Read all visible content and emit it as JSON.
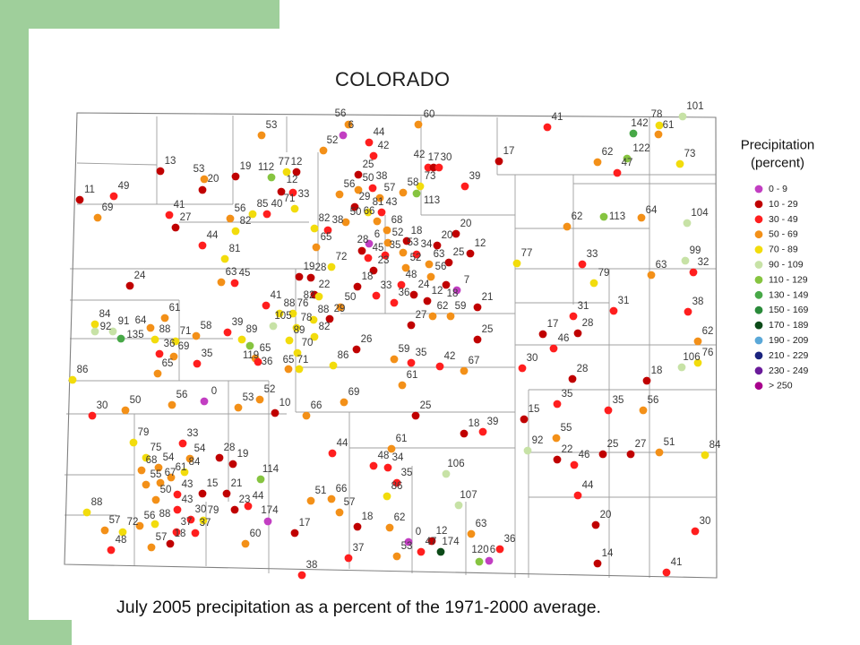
{
  "title": "COLORADO",
  "caption": "July 2005 precipitation as a percent of the 1971-2000 average.",
  "legend": {
    "title_line1": "Precipitation",
    "title_line2": "(percent)",
    "items": [
      {
        "label": "0 - 9",
        "color": "#c23ec2"
      },
      {
        "label": "10 - 29",
        "color": "#c00000"
      },
      {
        "label": "30 - 49",
        "color": "#ff1e1e"
      },
      {
        "label": "50 - 69",
        "color": "#f39018"
      },
      {
        "label": "70 - 89",
        "color": "#f2dc0c"
      },
      {
        "label": "90 - 109",
        "color": "#c7e2a6"
      },
      {
        "label": "110 - 129",
        "color": "#86c440"
      },
      {
        "label": "130 - 149",
        "color": "#47a847"
      },
      {
        "label": "150 - 169",
        "color": "#2a8a3a"
      },
      {
        "label": "170 - 189",
        "color": "#0c4a18"
      },
      {
        "label": "190 - 209",
        "color": "#5aa8d8"
      },
      {
        "label": "210 - 229",
        "color": "#1a237e"
      },
      {
        "label": "230 - 249",
        "color": "#6a1b9a"
      },
      {
        "label": "> 250",
        "color": "#a8008c"
      }
    ]
  },
  "stations": [
    {
      "value": "101",
      "bin": 5
    },
    {
      "value": "56",
      "bin": 3
    },
    {
      "value": "60",
      "bin": 3
    },
    {
      "value": "41",
      "bin": 2
    },
    {
      "value": "78",
      "bin": 4
    },
    {
      "value": "142",
      "bin": 7
    },
    {
      "value": "53",
      "bin": 3
    },
    {
      "value": "6",
      "bin": 0
    },
    {
      "value": "61",
      "bin": 3
    },
    {
      "value": "44",
      "bin": 2
    },
    {
      "value": "52",
      "bin": 3
    },
    {
      "value": "42",
      "bin": 2
    },
    {
      "value": "17",
      "bin": 1
    },
    {
      "value": "122",
      "bin": 6
    },
    {
      "value": "62",
      "bin": 3
    },
    {
      "value": "73",
      "bin": 4
    },
    {
      "value": "47",
      "bin": 2
    },
    {
      "value": "13",
      "bin": 1
    },
    {
      "value": "42",
      "bin": 2
    },
    {
      "value": "17",
      "bin": 1
    },
    {
      "value": "30",
      "bin": 2
    },
    {
      "value": "25",
      "bin": 1
    },
    {
      "value": "19",
      "bin": 1
    },
    {
      "value": "112",
      "bin": 6
    },
    {
      "value": "77",
      "bin": 4
    },
    {
      "value": "12",
      "bin": 1
    },
    {
      "value": "53",
      "bin": 3
    },
    {
      "value": "20",
      "bin": 1
    },
    {
      "value": "50",
      "bin": 3
    },
    {
      "value": "38",
      "bin": 2
    },
    {
      "value": "73",
      "bin": 4
    },
    {
      "value": "39",
      "bin": 2
    },
    {
      "value": "12",
      "bin": 1
    },
    {
      "value": "58",
      "bin": 3
    },
    {
      "value": "11",
      "bin": 1
    },
    {
      "value": "49",
      "bin": 2
    },
    {
      "value": "56",
      "bin": 3
    },
    {
      "value": "57",
      "bin": 3
    },
    {
      "value": "33",
      "bin": 2
    },
    {
      "value": "29",
      "bin": 1
    },
    {
      "value": "81",
      "bin": 4
    },
    {
      "value": "43",
      "bin": 2
    },
    {
      "value": "113",
      "bin": 6
    },
    {
      "value": "71",
      "bin": 4
    },
    {
      "value": "69",
      "bin": 3
    },
    {
      "value": "41",
      "bin": 2
    },
    {
      "value": "56",
      "bin": 3
    },
    {
      "value": "85",
      "bin": 4
    },
    {
      "value": "40",
      "bin": 2
    },
    {
      "value": "50",
      "bin": 3
    },
    {
      "value": "66",
      "bin": 3
    },
    {
      "value": "27",
      "bin": 1
    },
    {
      "value": "82",
      "bin": 4
    },
    {
      "value": "82",
      "bin": 4
    },
    {
      "value": "38",
      "bin": 2
    },
    {
      "value": "68",
      "bin": 3
    },
    {
      "value": "20",
      "bin": 1
    },
    {
      "value": "62",
      "bin": 3
    },
    {
      "value": "113",
      "bin": 6
    },
    {
      "value": "64",
      "bin": 3
    },
    {
      "value": "104",
      "bin": 5
    },
    {
      "value": "44",
      "bin": 2
    },
    {
      "value": "65",
      "bin": 3
    },
    {
      "value": "18",
      "bin": 1
    },
    {
      "value": "52",
      "bin": 3
    },
    {
      "value": "28",
      "bin": 1
    },
    {
      "value": "6",
      "bin": 0
    },
    {
      "value": "53",
      "bin": 3
    },
    {
      "value": "34",
      "bin": 2
    },
    {
      "value": "20",
      "bin": 1
    },
    {
      "value": "12",
      "bin": 1
    },
    {
      "value": "45",
      "bin": 2
    },
    {
      "value": "35",
      "bin": 2
    },
    {
      "value": "25",
      "bin": 1
    },
    {
      "value": "63",
      "bin": 3
    },
    {
      "value": "52",
      "bin": 3
    },
    {
      "value": "56",
      "bin": 3
    },
    {
      "value": "77",
      "bin": 4
    },
    {
      "value": "33",
      "bin": 2
    },
    {
      "value": "99",
      "bin": 5
    },
    {
      "value": "72",
      "bin": 4
    },
    {
      "value": "23",
      "bin": 1
    },
    {
      "value": "81",
      "bin": 4
    },
    {
      "value": "63",
      "bin": 3
    },
    {
      "value": "32",
      "bin": 2
    },
    {
      "value": "18",
      "bin": 1
    },
    {
      "value": "28",
      "bin": 1
    },
    {
      "value": "19",
      "bin": 1
    },
    {
      "value": "24",
      "bin": 1
    },
    {
      "value": "63",
      "bin": 3
    },
    {
      "value": "45",
      "bin": 2
    },
    {
      "value": "79",
      "bin": 4
    },
    {
      "value": "48",
      "bin": 2
    },
    {
      "value": "24",
      "bin": 1
    },
    {
      "value": "7",
      "bin": 0
    },
    {
      "value": "12",
      "bin": 1
    },
    {
      "value": "18",
      "bin": 1
    },
    {
      "value": "33",
      "bin": 2
    },
    {
      "value": "22",
      "bin": 1
    },
    {
      "value": "82",
      "bin": 4
    },
    {
      "value": "50",
      "bin": 3
    },
    {
      "value": "36",
      "bin": 2
    },
    {
      "value": "21",
      "bin": 1
    },
    {
      "value": "62",
      "bin": 3
    },
    {
      "value": "59",
      "bin": 3
    },
    {
      "value": "41",
      "bin": 2
    },
    {
      "value": "88",
      "bin": 4
    },
    {
      "value": "76",
      "bin": 4
    },
    {
      "value": "88",
      "bin": 4
    },
    {
      "value": "29",
      "bin": 1
    },
    {
      "value": "31",
      "bin": 2
    },
    {
      "value": "31",
      "bin": 2
    },
    {
      "value": "38",
      "bin": 2
    },
    {
      "value": "84",
      "bin": 4
    },
    {
      "value": "61",
      "bin": 3
    },
    {
      "value": "64",
      "bin": 3
    },
    {
      "value": "105",
      "bin": 5
    },
    {
      "value": "78",
      "bin": 4
    },
    {
      "value": "82",
      "bin": 4
    },
    {
      "value": "27",
      "bin": 1
    },
    {
      "value": "92",
      "bin": 5
    },
    {
      "value": "91",
      "bin": 5
    },
    {
      "value": "135",
      "bin": 7
    },
    {
      "value": "88",
      "bin": 4
    },
    {
      "value": "71",
      "bin": 4
    },
    {
      "value": "58",
      "bin": 3
    },
    {
      "value": "39",
      "bin": 2
    },
    {
      "value": "89",
      "bin": 4
    },
    {
      "value": "17",
      "bin": 1
    },
    {
      "value": "28",
      "bin": 1
    },
    {
      "value": "46",
      "bin": 2
    },
    {
      "value": "25",
      "bin": 1
    },
    {
      "value": "62",
      "bin": 3
    },
    {
      "value": "89",
      "bin": 4
    },
    {
      "value": "36",
      "bin": 2
    },
    {
      "value": "69",
      "bin": 3
    },
    {
      "value": "70",
      "bin": 4
    },
    {
      "value": "26",
      "bin": 1
    },
    {
      "value": "65",
      "bin": 3
    },
    {
      "value": "59",
      "bin": 3
    },
    {
      "value": "35",
      "bin": 2
    },
    {
      "value": "42",
      "bin": 2
    },
    {
      "value": "35",
      "bin": 2
    },
    {
      "value": "119",
      "bin": 6
    },
    {
      "value": "36",
      "bin": 2
    },
    {
      "value": "65",
      "bin": 3
    },
    {
      "value": "71",
      "bin": 4
    },
    {
      "value": "86",
      "bin": 4
    },
    {
      "value": "67",
      "bin": 3
    },
    {
      "value": "30",
      "bin": 2
    },
    {
      "value": "106",
      "bin": 5
    },
    {
      "value": "76",
      "bin": 4
    },
    {
      "value": "65",
      "bin": 3
    },
    {
      "value": "86",
      "bin": 4
    },
    {
      "value": "28",
      "bin": 1
    },
    {
      "value": "18",
      "bin": 1
    },
    {
      "value": "61",
      "bin": 3
    },
    {
      "value": "0",
      "bin": 0
    },
    {
      "value": "56",
      "bin": 3
    },
    {
      "value": "52",
      "bin": 3
    },
    {
      "value": "35",
      "bin": 2
    },
    {
      "value": "69",
      "bin": 3
    },
    {
      "value": "53",
      "bin": 3
    },
    {
      "value": "50",
      "bin": 3
    },
    {
      "value": "30",
      "bin": 2
    },
    {
      "value": "10",
      "bin": 1
    },
    {
      "value": "66",
      "bin": 3
    },
    {
      "value": "35",
      "bin": 2
    },
    {
      "value": "56",
      "bin": 3
    },
    {
      "value": "25",
      "bin": 1
    },
    {
      "value": "15",
      "bin": 1
    },
    {
      "value": "18",
      "bin": 1
    },
    {
      "value": "39",
      "bin": 2
    },
    {
      "value": "55",
      "bin": 3
    },
    {
      "value": "33",
      "bin": 2
    },
    {
      "value": "79",
      "bin": 4
    },
    {
      "value": "61",
      "bin": 3
    },
    {
      "value": "92",
      "bin": 5
    },
    {
      "value": "25",
      "bin": 1
    },
    {
      "value": "27",
      "bin": 1
    },
    {
      "value": "51",
      "bin": 3
    },
    {
      "value": "84",
      "bin": 4
    },
    {
      "value": "44",
      "bin": 2
    },
    {
      "value": "54",
      "bin": 3
    },
    {
      "value": "28",
      "bin": 1
    },
    {
      "value": "19",
      "bin": 1
    },
    {
      "value": "75",
      "bin": 4
    },
    {
      "value": "22",
      "bin": 1
    },
    {
      "value": "46",
      "bin": 2
    },
    {
      "value": "48",
      "bin": 2
    },
    {
      "value": "34",
      "bin": 2
    },
    {
      "value": "68",
      "bin": 3
    },
    {
      "value": "54",
      "bin": 3
    },
    {
      "value": "84",
      "bin": 4
    },
    {
      "value": "61",
      "bin": 3
    },
    {
      "value": "106",
      "bin": 5
    },
    {
      "value": "114",
      "bin": 6
    },
    {
      "value": "55",
      "bin": 3
    },
    {
      "value": "67",
      "bin": 3
    },
    {
      "value": "35",
      "bin": 2
    },
    {
      "value": "50",
      "bin": 3
    },
    {
      "value": "15",
      "bin": 1
    },
    {
      "value": "21",
      "bin": 1
    },
    {
      "value": "43",
      "bin": 2
    },
    {
      "value": "51",
      "bin": 3
    },
    {
      "value": "66",
      "bin": 3
    },
    {
      "value": "86",
      "bin": 4
    },
    {
      "value": "44",
      "bin": 2
    },
    {
      "value": "107",
      "bin": 5
    },
    {
      "value": "43",
      "bin": 2
    },
    {
      "value": "23",
      "bin": 1
    },
    {
      "value": "44",
      "bin": 2
    },
    {
      "value": "57",
      "bin": 3
    },
    {
      "value": "88",
      "bin": 4
    },
    {
      "value": "30",
      "bin": 2
    },
    {
      "value": "79",
      "bin": 4
    },
    {
      "value": "174",
      "bin": 0
    },
    {
      "value": "37",
      "bin": 2
    },
    {
      "value": "37",
      "bin": 2
    },
    {
      "value": "18",
      "bin": 1
    },
    {
      "value": "57",
      "bin": 3
    },
    {
      "value": "72",
      "bin": 4
    },
    {
      "value": "56",
      "bin": 3
    },
    {
      "value": "88",
      "bin": 4
    },
    {
      "value": "17",
      "bin": 1
    },
    {
      "value": "62",
      "bin": 3
    },
    {
      "value": "20",
      "bin": 1
    },
    {
      "value": "30",
      "bin": 2
    },
    {
      "value": "63",
      "bin": 3
    },
    {
      "value": "0",
      "bin": 0
    },
    {
      "value": "12",
      "bin": 1
    },
    {
      "value": "47",
      "bin": 2
    },
    {
      "value": "174",
      "bin": 9
    },
    {
      "value": "48",
      "bin": 2
    },
    {
      "value": "18",
      "bin": 1
    },
    {
      "value": "57",
      "bin": 3
    },
    {
      "value": "60",
      "bin": 3
    },
    {
      "value": "36",
      "bin": 2
    },
    {
      "value": "53",
      "bin": 3
    },
    {
      "value": "37",
      "bin": 2
    },
    {
      "value": "120",
      "bin": 6
    },
    {
      "value": "6",
      "bin": 0
    },
    {
      "value": "14",
      "bin": 1
    },
    {
      "value": "38",
      "bin": 2
    },
    {
      "value": "41",
      "bin": 2
    }
  ]
}
